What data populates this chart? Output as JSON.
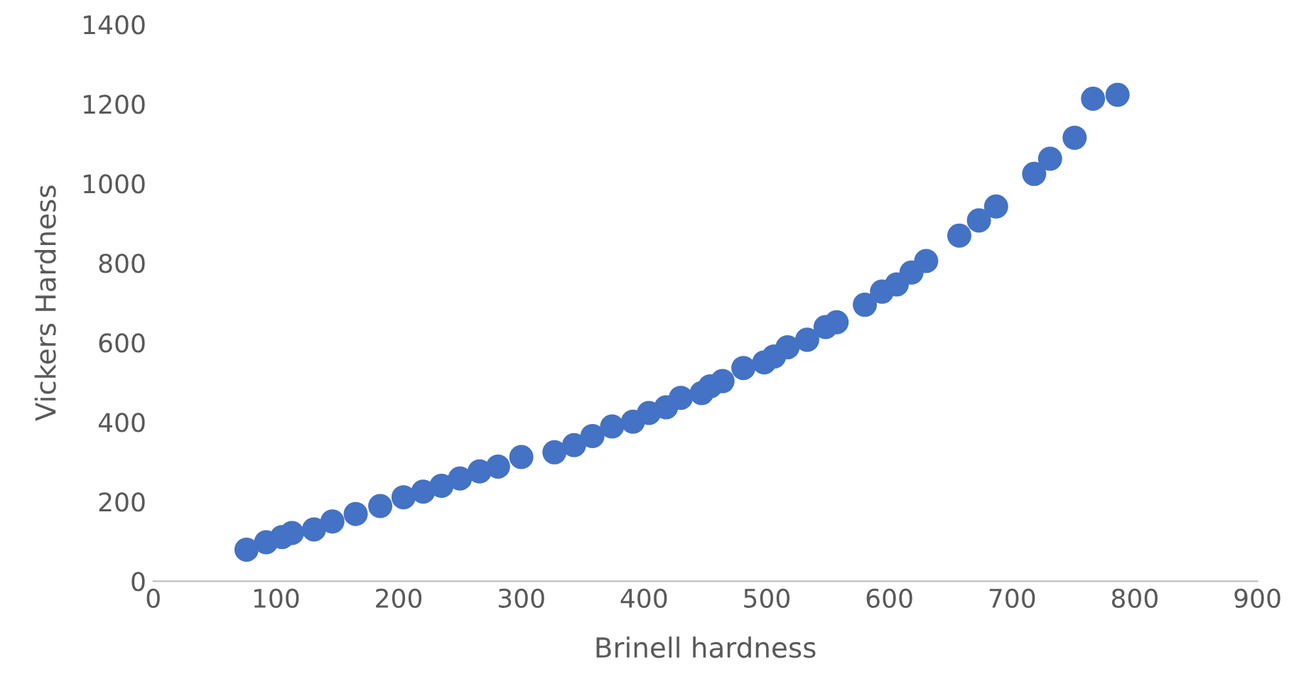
{
  "chart_data": {
    "type": "scatter",
    "xlabel": "Brinell hardness",
    "ylabel": "Vickers Hardness",
    "xlim": [
      0,
      900
    ],
    "xticks": [
      0,
      100,
      200,
      300,
      400,
      500,
      600,
      700,
      800,
      900
    ],
    "ylim": [
      0,
      1400
    ],
    "yticks": [
      0,
      200,
      400,
      600,
      800,
      1000,
      1200,
      1400
    ],
    "grid": false,
    "legend": false,
    "marker": "circle",
    "series": [
      {
        "color": "#4472c4",
        "x": [
          76,
          92,
          105,
          113,
          131,
          146,
          165,
          185,
          204,
          220,
          235,
          250,
          266,
          281,
          300,
          327,
          343,
          358,
          374,
          391,
          404,
          418,
          430,
          447,
          454,
          464,
          481,
          498,
          506,
          517,
          533,
          548,
          557,
          580,
          594,
          606,
          618,
          630,
          657,
          673,
          687,
          718,
          731,
          751,
          766,
          786
        ],
        "values": [
          79,
          98,
          111,
          121,
          130,
          150,
          169,
          189,
          211,
          225,
          240,
          258,
          276,
          288,
          312,
          324,
          342,
          365,
          389,
          401,
          423,
          437,
          461,
          473,
          490,
          503,
          536,
          550,
          565,
          588,
          607,
          639,
          651,
          695,
          728,
          746,
          776,
          805,
          869,
          907,
          942,
          1024,
          1062,
          1115,
          1213,
          1223
        ]
      }
    ]
  }
}
